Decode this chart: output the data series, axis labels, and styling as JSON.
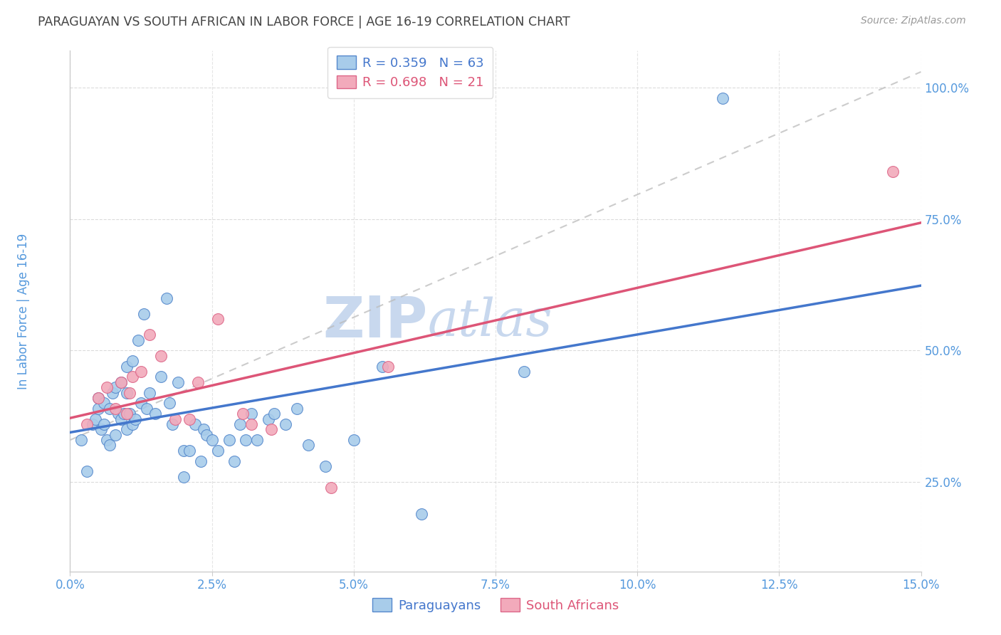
{
  "title": "PARAGUAYAN VS SOUTH AFRICAN IN LABOR FORCE | AGE 16-19 CORRELATION CHART",
  "source": "Source: ZipAtlas.com",
  "ylabel": "In Labor Force | Age 16-19",
  "x_tick_labels": [
    "0.0%",
    "2.5%",
    "5.0%",
    "7.5%",
    "10.0%",
    "12.5%",
    "15.0%"
  ],
  "x_tick_vals": [
    0.0,
    2.5,
    5.0,
    7.5,
    10.0,
    12.5,
    15.0
  ],
  "y_tick_labels": [
    "25.0%",
    "50.0%",
    "75.0%",
    "100.0%"
  ],
  "y_tick_vals": [
    25.0,
    50.0,
    75.0,
    100.0
  ],
  "xlim": [
    0.0,
    15.0
  ],
  "ylim": [
    8.0,
    107.0
  ],
  "legend_blue_r": "R = 0.359",
  "legend_blue_n": "N = 63",
  "legend_pink_r": "R = 0.698",
  "legend_pink_n": "N = 21",
  "blue_fill": "#A8CCEA",
  "pink_fill": "#F2AABB",
  "blue_edge": "#5588CC",
  "pink_edge": "#DD6688",
  "blue_line": "#4477CC",
  "pink_line": "#DD5577",
  "ref_line_color": "#BBBBBB",
  "title_color": "#444444",
  "tick_label_color": "#5599DD",
  "ylabel_color": "#5599DD",
  "watermark_color": "#C8D8EE",
  "background_color": "#FFFFFF",
  "grid_color": "#CCCCCC",
  "par_x": [
    0.2,
    0.3,
    0.4,
    0.45,
    0.5,
    0.5,
    0.55,
    0.6,
    0.6,
    0.65,
    0.7,
    0.7,
    0.75,
    0.8,
    0.8,
    0.85,
    0.9,
    0.9,
    0.95,
    1.0,
    1.0,
    1.0,
    1.05,
    1.1,
    1.1,
    1.15,
    1.2,
    1.25,
    1.3,
    1.35,
    1.4,
    1.5,
    1.6,
    1.7,
    1.75,
    1.8,
    1.9,
    2.0,
    2.0,
    2.1,
    2.2,
    2.3,
    2.35,
    2.4,
    2.5,
    2.6,
    2.8,
    2.9,
    3.0,
    3.1,
    3.2,
    3.3,
    3.5,
    3.6,
    3.8,
    4.0,
    4.2,
    4.5,
    5.0,
    5.5,
    6.2,
    8.0,
    11.5
  ],
  "par_y": [
    33,
    27,
    36,
    37,
    39,
    41,
    35,
    36,
    40,
    33,
    39,
    32,
    42,
    34,
    43,
    38,
    37,
    44,
    38,
    35,
    42,
    47,
    38,
    36,
    48,
    37,
    52,
    40,
    57,
    39,
    42,
    38,
    45,
    60,
    40,
    36,
    44,
    31,
    26,
    31,
    36,
    29,
    35,
    34,
    33,
    31,
    33,
    29,
    36,
    33,
    38,
    33,
    37,
    38,
    36,
    39,
    32,
    28,
    33,
    47,
    19,
    46,
    98
  ],
  "sa_x": [
    0.3,
    0.5,
    0.65,
    0.8,
    0.9,
    1.0,
    1.05,
    1.1,
    1.25,
    1.4,
    1.6,
    1.85,
    2.1,
    2.25,
    2.6,
    3.05,
    3.2,
    3.55,
    4.6,
    5.6,
    14.5
  ],
  "sa_y": [
    36,
    41,
    43,
    39,
    44,
    38,
    42,
    45,
    46,
    53,
    49,
    37,
    37,
    44,
    56,
    38,
    36,
    35,
    24,
    47,
    84
  ]
}
